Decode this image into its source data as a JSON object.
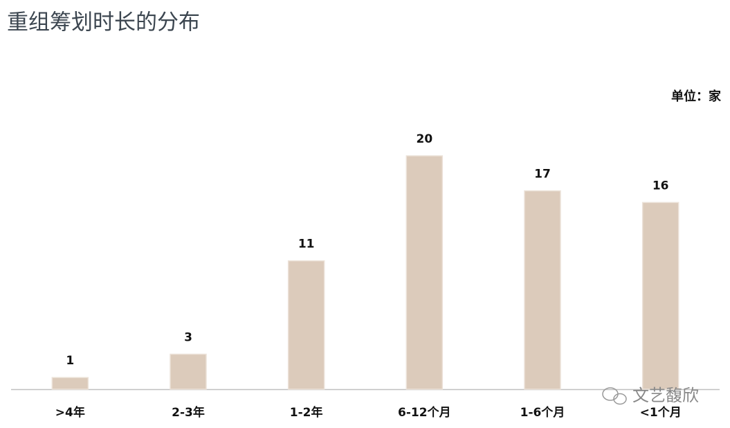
{
  "chart_data": {
    "type": "bar",
    "title": "重组筹划时长的分布",
    "unit": "单位：家",
    "categories": [
      ">4年",
      "2-3年",
      "1-2年",
      "6-12个月",
      "1-6个月",
      "<1个月"
    ],
    "values": [
      1,
      3,
      11,
      20,
      17,
      16
    ],
    "color": "#dccbbb"
  },
  "watermark": "文艺馥欣"
}
